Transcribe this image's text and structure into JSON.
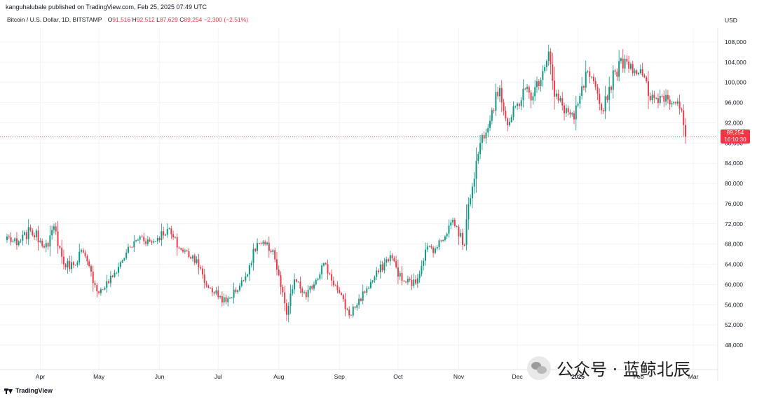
{
  "header": {
    "publisher": "kanguhalubale published on TradingView.com, Feb 25, 2025 07:49 UTC",
    "symbol": "Bitcoin / U.S. Dollar, 1D, BITSTAMP",
    "open_label": "O",
    "open": "91,516",
    "high_label": "H",
    "high": "92,512",
    "low_label": "L",
    "low": "87,629",
    "close_label": "C",
    "close": "89,254",
    "change": "−2,300 (−2.51%)",
    "currency": "USD"
  },
  "price_tag": {
    "price": "89,254",
    "countdown": "16:10:30"
  },
  "footer": {
    "brand": "TradingView"
  },
  "watermark": {
    "text": "公众号 · 蓝鲸北辰"
  },
  "colors": {
    "up": "#089981",
    "down": "#f23645",
    "grid": "#f0f3fa",
    "text": "#131722"
  },
  "chart_data": {
    "type": "candlestick",
    "title": "Bitcoin / U.S. Dollar, 1D, BITSTAMP",
    "ylabel": "USD",
    "ylim": [
      46000,
      110000
    ],
    "y_ticks": [
      48000,
      52000,
      56000,
      60000,
      64000,
      68000,
      72000,
      76000,
      80000,
      84000,
      88000,
      92000,
      96000,
      100000,
      104000,
      108000
    ],
    "y_tick_labels": [
      "48,000",
      "52,000",
      "56,000",
      "60,000",
      "64,000",
      "68,000",
      "72,000",
      "76,000",
      "80,000",
      "84,000",
      "88,000",
      "92,000",
      "96,000",
      "100,000",
      "104,000",
      "108,000"
    ],
    "x_labels": [
      "Apr",
      "May",
      "Jun",
      "Jul",
      "Aug",
      "Sep",
      "Oct",
      "Nov",
      "Dec",
      "2025",
      "Feb",
      "Mar"
    ],
    "last_price": 89254,
    "close_series": [
      {
        "date": "2024-03-15",
        "close": 69500
      },
      {
        "date": "2024-03-20",
        "close": 67800
      },
      {
        "date": "2024-03-27",
        "close": 70700
      },
      {
        "date": "2024-04-05",
        "close": 67500
      },
      {
        "date": "2024-04-08",
        "close": 71500
      },
      {
        "date": "2024-04-13",
        "close": 64000
      },
      {
        "date": "2024-04-18",
        "close": 63800
      },
      {
        "date": "2024-04-22",
        "close": 66800
      },
      {
        "date": "2024-05-01",
        "close": 58300
      },
      {
        "date": "2024-05-08",
        "close": 61500
      },
      {
        "date": "2024-05-15",
        "close": 66300
      },
      {
        "date": "2024-05-22",
        "close": 69500
      },
      {
        "date": "2024-05-28",
        "close": 68300
      },
      {
        "date": "2024-06-05",
        "close": 71000
      },
      {
        "date": "2024-06-11",
        "close": 67200
      },
      {
        "date": "2024-06-20",
        "close": 65000
      },
      {
        "date": "2024-06-24",
        "close": 60300
      },
      {
        "date": "2024-07-05",
        "close": 56500
      },
      {
        "date": "2024-07-14",
        "close": 60800
      },
      {
        "date": "2024-07-21",
        "close": 68200
      },
      {
        "date": "2024-07-29",
        "close": 66800
      },
      {
        "date": "2024-08-05",
        "close": 54000
      },
      {
        "date": "2024-08-09",
        "close": 61000
      },
      {
        "date": "2024-08-15",
        "close": 57500
      },
      {
        "date": "2024-08-24",
        "close": 64200
      },
      {
        "date": "2024-08-31",
        "close": 58900
      },
      {
        "date": "2024-09-06",
        "close": 53900
      },
      {
        "date": "2024-09-15",
        "close": 59200
      },
      {
        "date": "2024-09-27",
        "close": 65800
      },
      {
        "date": "2024-10-03",
        "close": 60700
      },
      {
        "date": "2024-10-10",
        "close": 60200
      },
      {
        "date": "2024-10-15",
        "close": 66900
      },
      {
        "date": "2024-10-21",
        "close": 67400
      },
      {
        "date": "2024-10-29",
        "close": 72800
      },
      {
        "date": "2024-11-04",
        "close": 67800
      },
      {
        "date": "2024-11-06",
        "close": 75900
      },
      {
        "date": "2024-11-12",
        "close": 88000
      },
      {
        "date": "2024-11-22",
        "close": 98900
      },
      {
        "date": "2024-11-26",
        "close": 91500
      },
      {
        "date": "2024-12-05",
        "close": 98700
      },
      {
        "date": "2024-12-09",
        "close": 97300
      },
      {
        "date": "2024-12-17",
        "close": 106100
      },
      {
        "date": "2024-12-20",
        "close": 97200
      },
      {
        "date": "2024-12-30",
        "close": 92700
      },
      {
        "date": "2025-01-06",
        "close": 102200
      },
      {
        "date": "2025-01-13",
        "close": 94500
      },
      {
        "date": "2025-01-20",
        "close": 102100
      },
      {
        "date": "2025-01-25",
        "close": 104700
      },
      {
        "date": "2025-02-03",
        "close": 101400
      },
      {
        "date": "2025-02-07",
        "close": 96500
      },
      {
        "date": "2025-02-15",
        "close": 97500
      },
      {
        "date": "2025-02-21",
        "close": 96200
      },
      {
        "date": "2025-02-24",
        "close": 91550
      },
      {
        "date": "2025-02-25",
        "close": 89254
      }
    ]
  }
}
